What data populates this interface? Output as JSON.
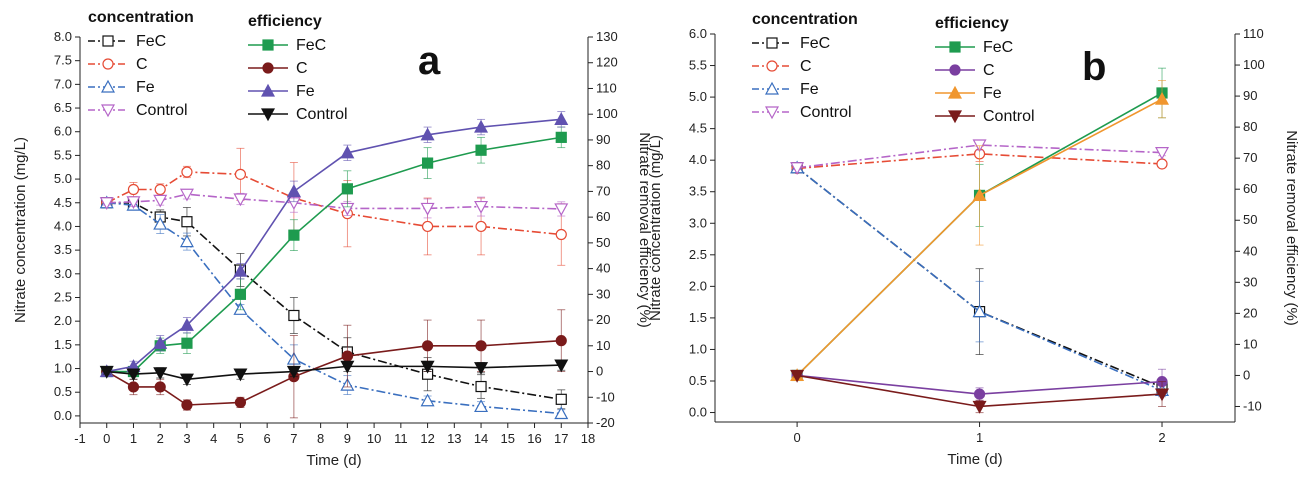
{
  "chart_data": [
    {
      "panel_label": "a",
      "type": "line",
      "xlabel": "Time (d)",
      "ylabel": "Nitrate concentration (mg/L)",
      "y2label": "Nitrate removal efficiency (%)",
      "xlim": [
        -1,
        18
      ],
      "ylim": [
        -0.15,
        8.0
      ],
      "y2lim": [
        -20,
        130
      ],
      "xticks": [
        -1,
        0,
        1,
        2,
        3,
        4,
        5,
        6,
        7,
        8,
        9,
        10,
        11,
        12,
        13,
        14,
        15,
        16,
        17,
        18
      ],
      "yticks": [
        "0.0",
        "0.5",
        "1.0",
        "1.5",
        "2.0",
        "2.5",
        "3.0",
        "3.5",
        "4.0",
        "4.5",
        "5.0",
        "5.5",
        "6.0",
        "6.5",
        "7.0",
        "7.5",
        "8.0"
      ],
      "y2ticks": [
        -20,
        -10,
        0,
        10,
        20,
        30,
        40,
        50,
        60,
        70,
        80,
        90,
        100,
        110,
        120,
        130
      ],
      "legend_groups": [
        "concentration",
        "efficiency"
      ],
      "x": [
        0,
        1,
        2,
        3,
        5,
        7,
        9,
        12,
        14,
        17
      ],
      "concentration_series": [
        {
          "name": "FeC",
          "color": "#111111",
          "marker": "square-open",
          "dash": "dashdot",
          "values": [
            4.5,
            4.5,
            4.2,
            4.1,
            3.08,
            2.12,
            1.35,
            0.88,
            0.62,
            0.35
          ],
          "err": [
            0.05,
            0.08,
            0.15,
            0.3,
            0.35,
            0.38,
            0.3,
            0.35,
            0.25,
            0.2
          ]
        },
        {
          "name": "C",
          "color": "#e64b35",
          "marker": "circle-open",
          "dash": "dashdot",
          "values": [
            4.5,
            4.78,
            4.78,
            5.15,
            5.1,
            4.6,
            4.27,
            4.0,
            4.0,
            3.83
          ],
          "err": [
            0.05,
            0.15,
            0.12,
            0.12,
            0.55,
            0.75,
            0.7,
            0.6,
            0.6,
            0.65
          ]
        },
        {
          "name": "Fe",
          "color": "#3a6fbf",
          "marker": "triangle-up-open",
          "dash": "dashdot",
          "values": [
            4.5,
            4.45,
            4.05,
            3.68,
            2.25,
            1.2,
            0.65,
            0.32,
            0.2,
            0.05
          ],
          "err": [
            0.05,
            0.08,
            0.2,
            0.18,
            0.1,
            0.3,
            0.2,
            0.1,
            0.1,
            0.08
          ]
        },
        {
          "name": "Control",
          "color": "#b565c8",
          "marker": "triangle-down-open",
          "dash": "dashdot",
          "values": [
            4.5,
            4.52,
            4.55,
            4.68,
            4.58,
            4.5,
            4.38,
            4.38,
            4.42,
            4.37
          ],
          "err": [
            0.05,
            0.1,
            0.1,
            0.1,
            0.12,
            0.2,
            0.15,
            0.2,
            0.2,
            0.15
          ]
        }
      ],
      "efficiency_series": [
        {
          "name": "FeC",
          "color": "#1e9b4f",
          "marker": "square",
          "values": [
            0,
            0,
            10,
            11,
            30,
            53,
            71,
            81,
            86,
            91
          ],
          "err": [
            1,
            2,
            3,
            4,
            6,
            6,
            7,
            6,
            5,
            4
          ]
        },
        {
          "name": "C",
          "color": "#7a1b1b",
          "marker": "circle",
          "values": [
            0,
            -6,
            -6,
            -13,
            -12,
            -2,
            6,
            10,
            10,
            12
          ],
          "err": [
            1,
            3,
            3,
            2,
            2,
            16,
            12,
            10,
            10,
            12
          ]
        },
        {
          "name": "Fe",
          "color": "#6052b0",
          "marker": "triangle-up",
          "values": [
            0,
            2,
            11,
            18,
            39,
            70,
            85,
            92,
            95,
            98
          ],
          "err": [
            1,
            2,
            3,
            3,
            3,
            4,
            3,
            3,
            3,
            3
          ]
        },
        {
          "name": "Control",
          "color": "#111111",
          "marker": "triangle-down",
          "values": [
            0,
            -1,
            -0.5,
            -3,
            -1,
            0,
            2,
            2,
            1.5,
            2.5
          ],
          "err": [
            1,
            2,
            2,
            2,
            2,
            2,
            2,
            2,
            2,
            2
          ]
        }
      ]
    },
    {
      "panel_label": "b",
      "type": "line",
      "xlabel": "Time (d)",
      "ylabel": "Nitrate concentration (mg/L)",
      "y2label": "Nitrate removal efficiency (%)",
      "xlim": [
        -0.45,
        2.4
      ],
      "ylim": [
        -0.15,
        6.0
      ],
      "y2lim": [
        -15,
        110
      ],
      "xticks": [
        0,
        1,
        2
      ],
      "yticks": [
        "0.0",
        "0.5",
        "1.0",
        "1.5",
        "2.0",
        "2.5",
        "3.0",
        "3.5",
        "4.0",
        "4.5",
        "5.0",
        "5.5",
        "6.0"
      ],
      "y2ticks": [
        -10,
        0,
        10,
        20,
        30,
        40,
        50,
        60,
        70,
        80,
        90,
        100,
        110
      ],
      "legend_groups": [
        "concentration",
        "efficiency"
      ],
      "x": [
        0,
        1,
        2
      ],
      "concentration_series": [
        {
          "name": "FeC",
          "color": "#111111",
          "marker": "square-open",
          "dash": "dashdot",
          "values": [
            3.88,
            1.6,
            0.4
          ],
          "err": [
            0.03,
            0.68,
            0.1
          ]
        },
        {
          "name": "C",
          "color": "#e64b35",
          "marker": "circle-open",
          "dash": "dashdot",
          "values": [
            3.87,
            4.1,
            3.94
          ],
          "err": [
            0.03,
            0.12,
            0.05
          ]
        },
        {
          "name": "Fe",
          "color": "#3a6fbf",
          "marker": "triangle-up-open",
          "dash": "dashdot",
          "values": [
            3.88,
            1.6,
            0.35
          ],
          "err": [
            0.03,
            0.48,
            0.1
          ]
        },
        {
          "name": "Control",
          "color": "#b565c8",
          "marker": "triangle-down-open",
          "dash": "dashdot",
          "values": [
            3.88,
            4.24,
            4.12
          ],
          "err": [
            0.03,
            0.08,
            0.05
          ]
        }
      ],
      "efficiency_series": [
        {
          "name": "FeC",
          "color": "#1e9b4f",
          "marker": "square",
          "values": [
            0,
            58,
            91
          ],
          "err": [
            0.5,
            10,
            8
          ]
        },
        {
          "name": "C",
          "color": "#7a3fa0",
          "marker": "circle",
          "values": [
            0,
            -6,
            -2
          ],
          "err": [
            0.5,
            2,
            4
          ]
        },
        {
          "name": "Fe",
          "color": "#f0962e",
          "marker": "triangle-up",
          "values": [
            0,
            58,
            89
          ],
          "err": [
            0.5,
            16,
            6
          ]
        },
        {
          "name": "Control",
          "color": "#7a1b1b",
          "marker": "triangle-down",
          "values": [
            0,
            -10,
            -6
          ],
          "err": [
            0.5,
            2,
            4
          ]
        }
      ]
    }
  ]
}
